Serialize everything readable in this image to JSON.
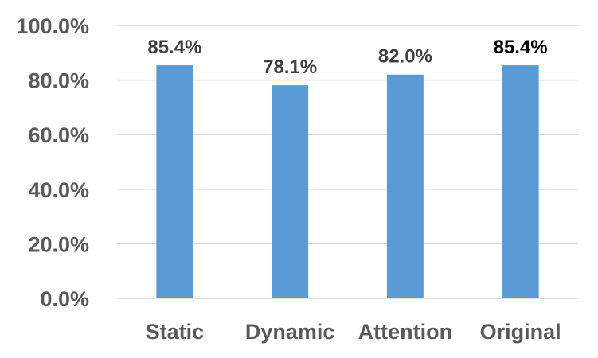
{
  "chart_data": {
    "type": "bar",
    "categories": [
      "Static",
      "Dynamic",
      "Attention",
      "Original"
    ],
    "values": [
      85.4,
      78.1,
      82.0,
      85.4
    ],
    "data_labels": [
      "85.4%",
      "78.1%",
      "82.0%",
      "85.4%"
    ],
    "title": "",
    "xlabel": "",
    "ylabel": "",
    "ylim": [
      0,
      100
    ],
    "yticks": [
      0,
      20,
      40,
      60,
      80,
      100
    ],
    "ytick_labels": [
      "0.0%",
      "20.0%",
      "40.0%",
      "60.0%",
      "80.0%",
      "100.0%"
    ],
    "grid": true,
    "legend": "none",
    "bar_color": "#5b9bd5",
    "gridline_color": "#d9d9d9",
    "tick_label_color": "#595959"
  }
}
